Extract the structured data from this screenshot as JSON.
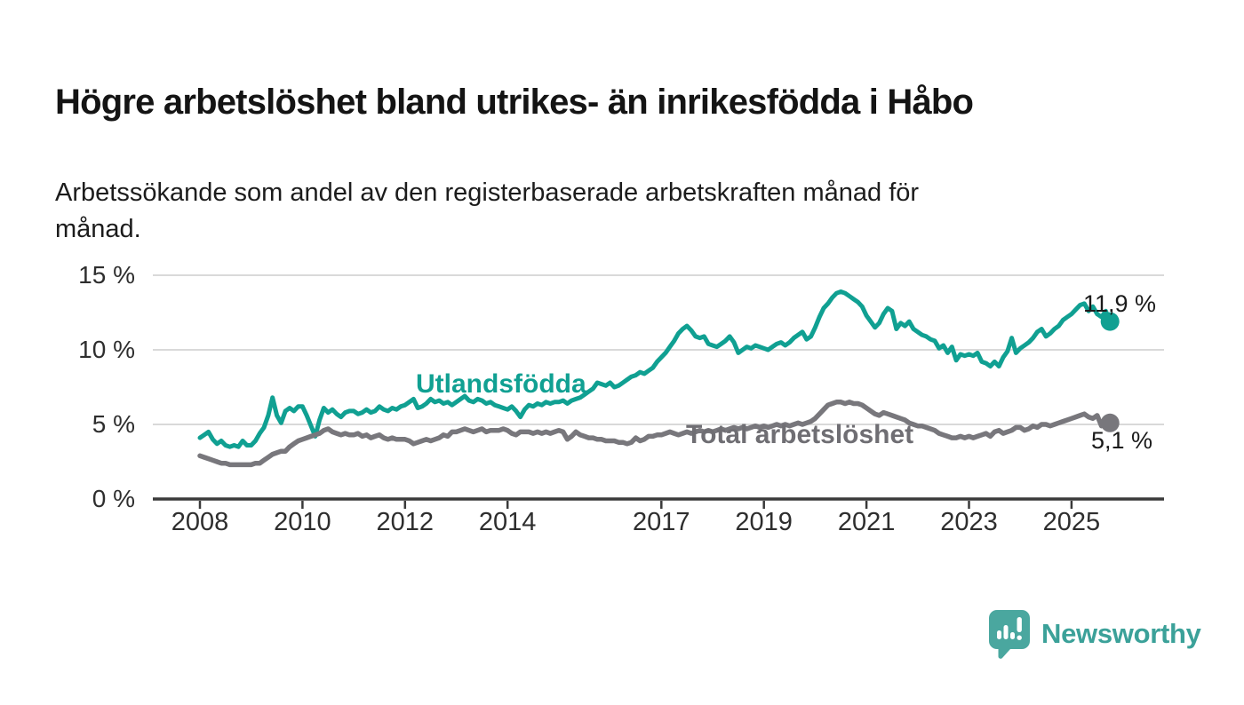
{
  "header": {
    "title": "Högre arbetslöshet bland utrikes- än inrikesfödda i Håbo",
    "subtitle": "Arbetssökande som andel av den registerbaserade arbetskraften månad för månad."
  },
  "colors": {
    "teal": "#10a092",
    "gray": "#78777c",
    "gray_label": "#6f6e73",
    "axis": "#3a3a3a",
    "grid": "#d9d9d9",
    "text": "#1b1b1b",
    "brand": "#3ba199"
  },
  "chart_data": {
    "type": "line",
    "title": "Högre arbetslöshet bland utrikes- än inrikesfödda i Håbo",
    "subtitle": "Arbetssökande som andel av den registerbaserade arbetskraften månad för månad.",
    "unit": "%",
    "frequency": "monthly",
    "x_start": {
      "year": 2008,
      "month": 1
    },
    "x_end": {
      "year": 2025,
      "month": 10
    },
    "x_ticks": [
      2008,
      2010,
      2012,
      2014,
      2017,
      2019,
      2021,
      2023,
      2025
    ],
    "y_ticks": [
      0,
      5,
      10,
      15
    ],
    "y_tick_labels": [
      "0 %",
      "5 %",
      "10 %",
      "15 %"
    ],
    "ylim": [
      0,
      16
    ],
    "grid": "horizontal",
    "legend_position": "inline-labels",
    "series": [
      {
        "name": "Utlandsfödda",
        "color": "#10a092",
        "end_label": "11,9 %",
        "last_value": 11.9,
        "values": [
          4.1,
          4.3,
          4.5,
          4.0,
          3.7,
          3.9,
          3.6,
          3.5,
          3.6,
          3.5,
          3.9,
          3.6,
          3.6,
          3.9,
          4.4,
          4.8,
          5.6,
          6.8,
          5.6,
          5.1,
          5.9,
          6.1,
          5.9,
          6.2,
          6.2,
          5.6,
          4.9,
          4.2,
          5.3,
          6.1,
          5.8,
          6.0,
          5.7,
          5.5,
          5.8,
          5.9,
          5.9,
          5.7,
          5.8,
          6.0,
          5.8,
          5.9,
          6.2,
          6.0,
          5.9,
          6.1,
          6.0,
          6.2,
          6.3,
          6.5,
          6.7,
          6.1,
          6.2,
          6.4,
          6.7,
          6.5,
          6.6,
          6.4,
          6.5,
          6.3,
          6.5,
          6.7,
          6.9,
          6.6,
          6.5,
          6.7,
          6.6,
          6.4,
          6.5,
          6.3,
          6.2,
          6.1,
          6.0,
          6.2,
          5.9,
          5.5,
          6.0,
          6.3,
          6.2,
          6.4,
          6.3,
          6.5,
          6.4,
          6.5,
          6.5,
          6.6,
          6.4,
          6.6,
          6.7,
          6.8,
          7.0,
          7.2,
          7.4,
          7.8,
          7.7,
          7.6,
          7.8,
          7.5,
          7.6,
          7.8,
          8.0,
          8.2,
          8.3,
          8.5,
          8.4,
          8.6,
          8.8,
          9.2,
          9.5,
          9.8,
          10.2,
          10.6,
          11.1,
          11.4,
          11.6,
          11.3,
          10.9,
          10.8,
          10.9,
          10.4,
          10.3,
          10.2,
          10.4,
          10.6,
          10.9,
          10.5,
          9.8,
          10.0,
          10.2,
          10.1,
          10.3,
          10.2,
          10.1,
          10.0,
          10.2,
          10.4,
          10.5,
          10.3,
          10.5,
          10.8,
          11.0,
          11.2,
          10.7,
          10.9,
          11.5,
          12.2,
          12.8,
          13.1,
          13.5,
          13.8,
          13.9,
          13.8,
          13.6,
          13.4,
          13.2,
          12.9,
          12.3,
          11.9,
          11.5,
          11.8,
          12.4,
          12.8,
          12.6,
          11.4,
          11.8,
          11.6,
          11.9,
          11.4,
          11.2,
          11.0,
          10.9,
          10.7,
          10.6,
          10.1,
          10.3,
          9.8,
          10.2,
          9.3,
          9.7,
          9.6,
          9.7,
          9.6,
          9.8,
          9.2,
          9.1,
          8.9,
          9.2,
          8.9,
          9.5,
          9.9,
          10.8,
          9.8,
          10.1,
          10.3,
          10.5,
          10.8,
          11.2,
          11.4,
          10.9,
          11.1,
          11.4,
          11.6,
          12.0,
          12.2,
          12.4,
          12.7,
          13.0,
          13.1,
          12.6,
          12.9,
          12.4,
          12.2,
          12.6,
          11.9
        ]
      },
      {
        "name": "Total arbetslöshet",
        "color": "#78777c",
        "end_label": "5,1 %",
        "last_value": 5.1,
        "values": [
          2.9,
          2.8,
          2.7,
          2.6,
          2.5,
          2.4,
          2.4,
          2.3,
          2.3,
          2.3,
          2.3,
          2.3,
          2.3,
          2.4,
          2.4,
          2.6,
          2.8,
          3.0,
          3.1,
          3.2,
          3.2,
          3.5,
          3.7,
          3.9,
          4.0,
          4.1,
          4.2,
          4.3,
          4.4,
          4.6,
          4.7,
          4.5,
          4.4,
          4.3,
          4.4,
          4.3,
          4.3,
          4.4,
          4.2,
          4.3,
          4.1,
          4.2,
          4.3,
          4.1,
          4.0,
          4.1,
          4.0,
          4.0,
          4.0,
          3.9,
          3.7,
          3.8,
          3.9,
          4.0,
          3.9,
          4.0,
          4.1,
          4.3,
          4.2,
          4.5,
          4.5,
          4.6,
          4.7,
          4.6,
          4.5,
          4.6,
          4.7,
          4.5,
          4.6,
          4.6,
          4.6,
          4.7,
          4.6,
          4.4,
          4.3,
          4.5,
          4.5,
          4.5,
          4.4,
          4.5,
          4.4,
          4.5,
          4.4,
          4.5,
          4.6,
          4.5,
          4.0,
          4.2,
          4.5,
          4.3,
          4.2,
          4.1,
          4.1,
          4.0,
          4.0,
          3.9,
          3.9,
          3.9,
          3.8,
          3.8,
          3.7,
          3.8,
          4.1,
          3.9,
          4.0,
          4.2,
          4.2,
          4.3,
          4.3,
          4.4,
          4.5,
          4.4,
          4.3,
          4.4,
          4.5,
          4.4,
          4.5,
          4.6,
          4.5,
          4.6,
          4.5,
          4.6,
          4.7,
          4.6,
          4.7,
          4.8,
          4.7,
          4.8,
          4.7,
          4.8,
          4.9,
          4.8,
          4.9,
          4.8,
          4.9,
          5.0,
          4.9,
          5.0,
          4.9,
          5.0,
          5.1,
          5.0,
          5.1,
          5.2,
          5.4,
          5.7,
          6.0,
          6.3,
          6.4,
          6.5,
          6.5,
          6.4,
          6.5,
          6.4,
          6.4,
          6.3,
          6.1,
          5.9,
          5.7,
          5.6,
          5.8,
          5.7,
          5.6,
          5.5,
          5.4,
          5.3,
          5.1,
          5.0,
          4.9,
          4.9,
          4.8,
          4.7,
          4.6,
          4.4,
          4.3,
          4.2,
          4.1,
          4.1,
          4.2,
          4.1,
          4.2,
          4.1,
          4.2,
          4.3,
          4.4,
          4.2,
          4.5,
          4.6,
          4.4,
          4.5,
          4.6,
          4.8,
          4.8,
          4.6,
          4.7,
          4.9,
          4.8,
          5.0,
          5.0,
          4.9,
          5.0,
          5.1,
          5.2,
          5.3,
          5.4,
          5.5,
          5.6,
          5.7,
          5.5,
          5.4,
          5.6,
          4.9,
          5.3,
          5.1
        ]
      }
    ]
  },
  "branding": {
    "name": "Newsworthy",
    "icon": "speech-bubble-bar-chart-icon"
  }
}
